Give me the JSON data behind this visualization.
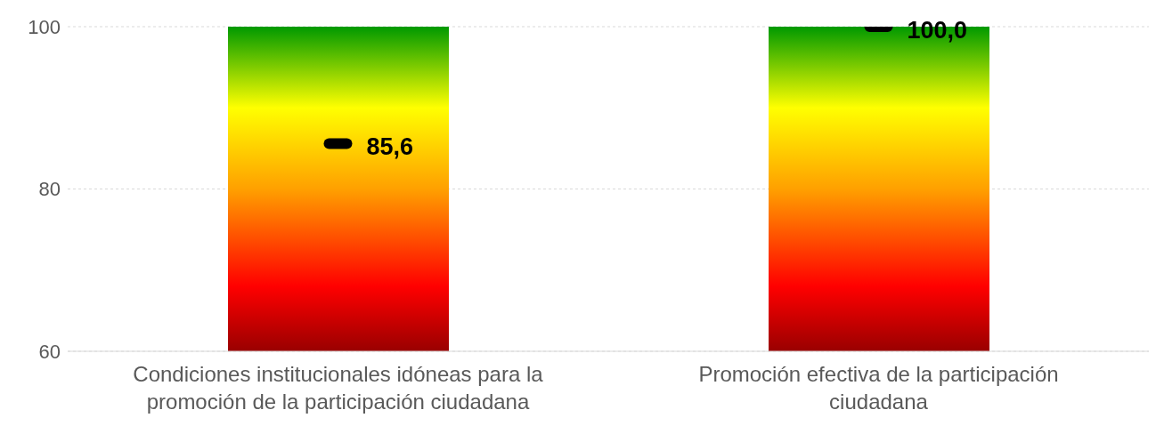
{
  "chart_data": {
    "type": "bar",
    "categories": [
      "Condiciones institucionales idóneas para la promoción de la participación ciudadana",
      "Promoción efectiva de la participación ciudadana"
    ],
    "series": [
      {
        "type": "bar",
        "color": "#ffff00",
        "values": [
          100,
          100
        ]
      },
      {
        "type": "scatter",
        "color": "#000000",
        "x": [
          "Condiciones institucionales idóneas para la promoción de la participación ciudadana",
          "Promoción efectiva de la participación ciudadana"
        ],
        "values": [
          85.6,
          100
        ],
        "value_labels": [
          "85,6",
          "100,0"
        ]
      }
    ],
    "ylim": [
      60,
      100
    ],
    "yticks": [
      60,
      80,
      100
    ],
    "grid": "y",
    "legend": false
  }
}
